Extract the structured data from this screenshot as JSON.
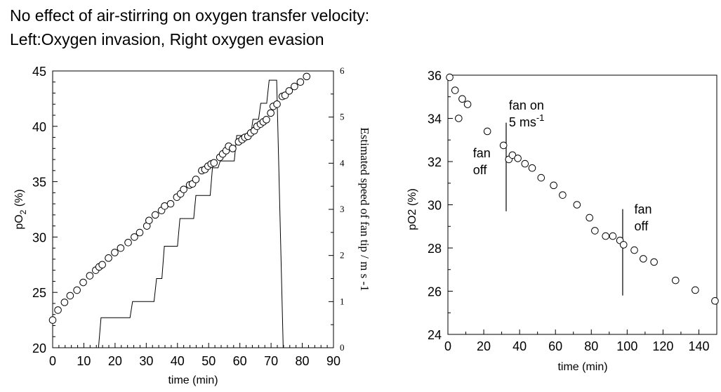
{
  "title_lines": [
    "No effect of air-stirring on oxygen transfer velocity:",
    "Left:Oxygen invasion, Right oxygen evasion"
  ],
  "chart_data": [
    {
      "type": "scatter",
      "title": "",
      "xlabel": "time (min)",
      "ylabel_main": "pO",
      "ylabel_sub": "2",
      "ylabel_tail": " (%)",
      "y2label": "Estimated speed of fan tip / m s -1",
      "xlim": [
        0,
        90
      ],
      "ylim": [
        20,
        45
      ],
      "y2lim": [
        0,
        6
      ],
      "x_ticks": [
        0,
        10,
        20,
        30,
        40,
        50,
        60,
        70,
        80,
        90
      ],
      "y_ticks": [
        20,
        25,
        30,
        35,
        40,
        45
      ],
      "y2_ticks": [
        0,
        1,
        2,
        3,
        4,
        5,
        6
      ],
      "grid": false,
      "series": [
        {
          "kind": "points",
          "x": [
            0,
            1.7,
            3.8,
            5.6,
            7.8,
            9.8,
            11.9,
            13.8,
            14.9,
            15.9,
            17.9,
            19.9,
            21.8,
            24.2,
            26.2,
            27.9,
            30.2,
            30.9,
            32.9,
            34.9,
            35.9,
            37.8,
            39.8,
            41.0,
            42.0,
            43.9,
            44.8,
            45.9,
            47.8,
            48.8,
            49.8,
            50.8,
            51.7,
            53.6,
            54.5,
            55.6,
            56.4,
            57.7,
            59.6,
            60.7,
            61.6,
            62.6,
            63.5,
            64.6,
            65.5,
            66.6,
            67.5,
            68.5,
            69.9,
            70.7,
            71.9,
            73.6,
            74.5,
            75.8,
            77.5,
            79.4,
            81.4
          ],
          "y": [
            22.5,
            23.4,
            24.1,
            24.7,
            25.2,
            25.9,
            26.5,
            27.0,
            27.3,
            27.5,
            28.1,
            28.6,
            29.0,
            29.5,
            30.0,
            30.4,
            31.0,
            31.5,
            32.0,
            32.4,
            32.8,
            33.0,
            33.6,
            33.9,
            34.3,
            34.7,
            34.8,
            35.2,
            36.0,
            36.1,
            36.4,
            36.6,
            36.7,
            37.2,
            37.5,
            37.8,
            38.2,
            38.0,
            38.6,
            38.8,
            39.0,
            39.1,
            39.4,
            39.6,
            40.0,
            40.2,
            40.4,
            40.6,
            41.2,
            41.8,
            42.0,
            42.7,
            42.8,
            43.2,
            43.6,
            44.0,
            44.5
          ]
        },
        {
          "kind": "step-line",
          "axis": "y2",
          "x": [
            14.7,
            15.5,
            24.8,
            25.6,
            30.8,
            32.5,
            33.3,
            35.0,
            35.8,
            40.0,
            40.8,
            45.2,
            45.9,
            50.5,
            51.2,
            53.0,
            53.7,
            58.2,
            59.0,
            63.5,
            64.2,
            66.0,
            66.7,
            68.6,
            69.4,
            70.6,
            71.8,
            73.9
          ],
          "y": [
            0.0,
            0.65,
            0.65,
            1.0,
            1.0,
            1.0,
            1.5,
            1.5,
            2.2,
            2.2,
            2.8,
            2.8,
            3.3,
            3.3,
            3.9,
            3.9,
            4.05,
            4.05,
            4.6,
            4.6,
            4.95,
            4.95,
            5.3,
            5.3,
            5.8,
            5.8,
            5.8,
            0.0
          ]
        }
      ]
    },
    {
      "type": "scatter",
      "title": "",
      "xlabel": "time (min)",
      "ylabel_main": "pO2 (%)",
      "xlim": [
        0,
        150
      ],
      "ylim": [
        24,
        36
      ],
      "x_ticks": [
        0,
        20,
        40,
        60,
        80,
        100,
        120,
        140
      ],
      "y_ticks": [
        24,
        26,
        28,
        30,
        32,
        34,
        36
      ],
      "grid": false,
      "series": [
        {
          "kind": "points",
          "x": [
            1,
            4,
            6,
            8,
            11,
            22,
            31,
            34,
            36,
            39,
            43,
            47,
            52,
            59,
            64,
            72,
            79,
            82,
            88,
            92,
            96,
            98,
            104,
            109,
            115,
            127,
            138,
            149
          ],
          "y": [
            35.9,
            35.3,
            34.0,
            34.9,
            34.65,
            33.4,
            32.75,
            32.1,
            32.3,
            32.15,
            31.9,
            31.7,
            31.25,
            30.9,
            30.45,
            30.0,
            29.4,
            28.8,
            28.55,
            28.55,
            28.35,
            28.15,
            27.9,
            27.5,
            27.35,
            26.5,
            26.05,
            25.55
          ]
        }
      ],
      "annotations": [
        {
          "text": [
            "fan on",
            "5 ms"
          ],
          "superscript": "-1",
          "x": 34,
          "y": 34.4
        },
        {
          "text": [
            "fan",
            "off"
          ],
          "x": 14,
          "y": 32.2
        },
        {
          "text": [
            "fan",
            "off"
          ],
          "x": 104,
          "y": 29.6
        }
      ],
      "markers": [
        {
          "x": 32.5,
          "y_from": 29.7,
          "y_to": 33.8
        },
        {
          "x": 97.5,
          "y_from": 25.8,
          "y_to": 29.8
        }
      ]
    }
  ]
}
